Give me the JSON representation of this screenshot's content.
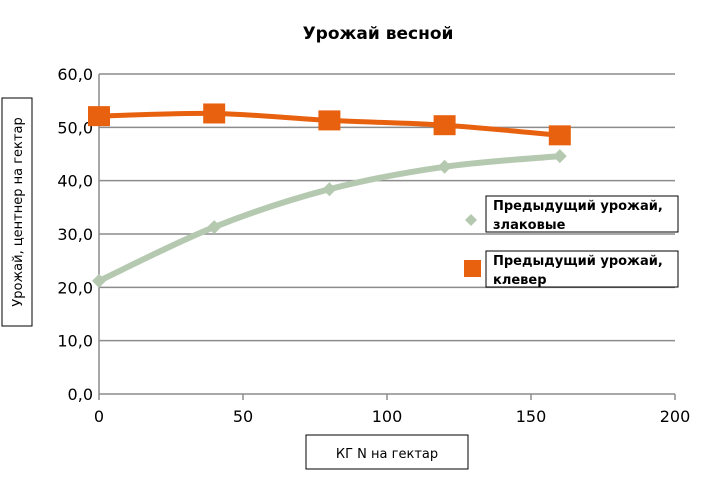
{
  "chart_data": {
    "type": "scatter",
    "title": "Урожай весной",
    "xlabel": "КГ N на гектар",
    "ylabel": "Урожай, центнер на гектар",
    "xlim": [
      0,
      200
    ],
    "ylim": [
      0,
      60
    ],
    "x_ticks": [
      "0",
      "50",
      "100",
      "150",
      "200"
    ],
    "y_ticks": [
      "0,0",
      "10,0",
      "20,0",
      "30,0",
      "40,0",
      "50,0",
      "60,0"
    ],
    "grid": true,
    "legend_position": "right",
    "series": [
      {
        "name": "Предыдущий урожай, злаковые",
        "name_lines": [
          "Предыдущий урожай,",
          "злаковые"
        ],
        "color": "#b5c9b1",
        "marker": "diamond",
        "smooth": true,
        "x": [
          0,
          40,
          80,
          120,
          160
        ],
        "y": [
          21.2,
          31.3,
          38.4,
          42.6,
          44.6
        ]
      },
      {
        "name": "Предыдущий урожай, клевер",
        "name_lines": [
          "Предыдущий урожай,",
          "клевер"
        ],
        "color": "#e8610f",
        "marker": "square",
        "smooth": true,
        "x": [
          0,
          40,
          80,
          120,
          160
        ],
        "y": [
          52.1,
          52.6,
          51.3,
          50.4,
          48.5
        ]
      }
    ]
  }
}
